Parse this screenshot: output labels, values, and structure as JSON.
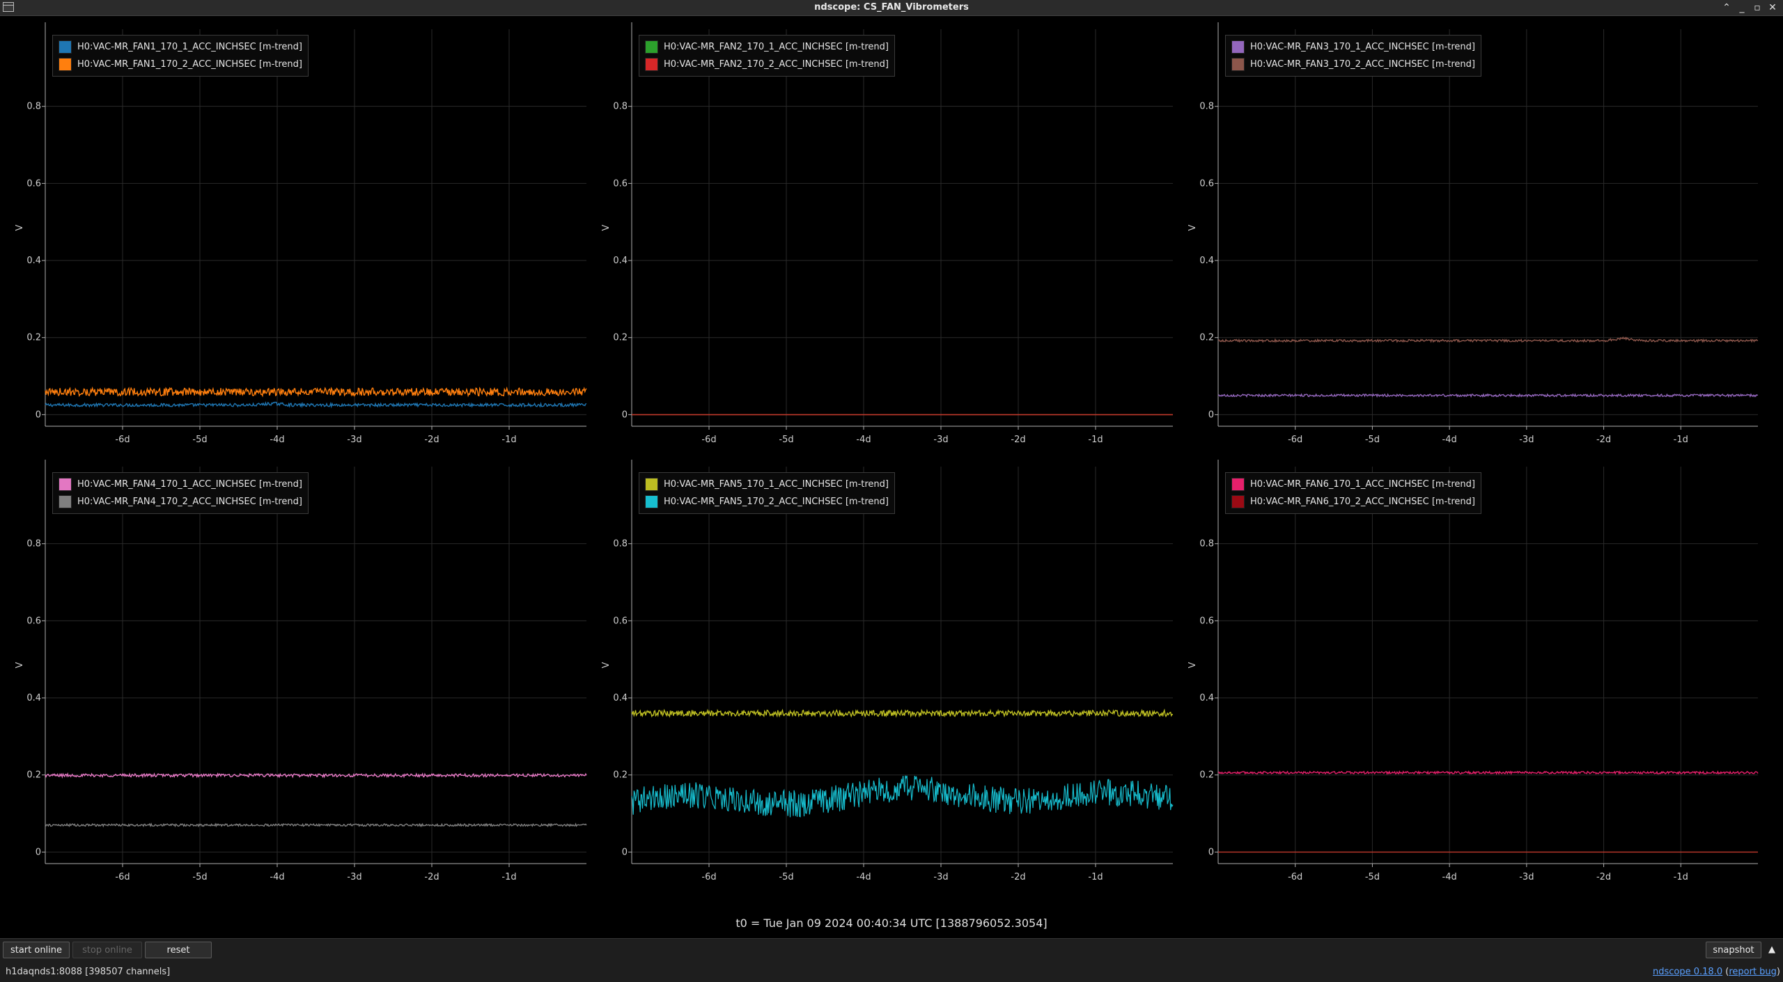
{
  "window": {
    "title": "ndscope: CS_FAN_Vibrometers",
    "controls": [
      "⌃",
      "_",
      "▫",
      "✕"
    ]
  },
  "colors": {
    "background": "#000000",
    "grid": "#2a2a2a",
    "axis": "#b0b0b0",
    "tick_text": "#cfcfcf",
    "zero_line": "#c0392b"
  },
  "t0_label": "t0 = Tue Jan 09 2024 00:40:34 UTC [1388796052.3054]",
  "toolbar": {
    "start_online": "start online",
    "stop_online": "stop online",
    "reset": "reset",
    "snapshot": "snapshot",
    "expand_icon": "triangle-up-icon"
  },
  "status": {
    "server": "h1daqnds1:8088",
    "channels": "[398507 channels]",
    "version": "ndscope 0.18.0",
    "report_bug": "report bug"
  },
  "chart_data": [
    {
      "type": "line",
      "ylabel": "V",
      "ylim": [
        -0.03,
        1.0
      ],
      "yticks": [
        0,
        0.2,
        0.4,
        0.6,
        0.8
      ],
      "xlim": [
        -7,
        0
      ],
      "xticks": [
        "-6d",
        "-5d",
        "-4d",
        "-3d",
        "-2d",
        "-1d"
      ],
      "legend_position": "top-left",
      "series": [
        {
          "name": "H0:VAC-MR_FAN1_170_1_ACC_INCHSEC [m-trend]",
          "color": "#1f77b4",
          "level": 0.025,
          "noise": 0.004,
          "bump": {
            "x": -4.05,
            "dy": 0.004
          }
        },
        {
          "name": "H0:VAC-MR_FAN1_170_2_ACC_INCHSEC [m-trend]",
          "color": "#ff7f0e",
          "level": 0.059,
          "noise": 0.01
        }
      ]
    },
    {
      "type": "line",
      "ylabel": "V",
      "ylim": [
        -0.03,
        1.0
      ],
      "yticks": [
        0,
        0.2,
        0.4,
        0.6,
        0.8
      ],
      "xlim": [
        -7,
        0
      ],
      "xticks": [
        "-6d",
        "-5d",
        "-4d",
        "-3d",
        "-2d",
        "-1d"
      ],
      "legend_position": "top-left",
      "series": [
        {
          "name": "H0:VAC-MR_FAN2_170_1_ACC_INCHSEC [m-trend]",
          "color": "#2ca02c",
          "level": 0.0,
          "noise": 0.0
        },
        {
          "name": "H0:VAC-MR_FAN2_170_2_ACC_INCHSEC [m-trend]",
          "color": "#d62728",
          "level": 0.0,
          "noise": 0.0
        }
      ]
    },
    {
      "type": "line",
      "ylabel": "V",
      "ylim": [
        -0.03,
        1.0
      ],
      "yticks": [
        0,
        0.2,
        0.4,
        0.6,
        0.8
      ],
      "xlim": [
        -7,
        0
      ],
      "xticks": [
        "-6d",
        "-5d",
        "-4d",
        "-3d",
        "-2d",
        "-1d"
      ],
      "legend_position": "top-left",
      "series": [
        {
          "name": "H0:VAC-MR_FAN3_170_1_ACC_INCHSEC [m-trend]",
          "color": "#9467bd",
          "level": 0.05,
          "noise": 0.003
        },
        {
          "name": "H0:VAC-MR_FAN3_170_2_ACC_INCHSEC [m-trend]",
          "color": "#8c564b",
          "level": 0.192,
          "noise": 0.003,
          "bump": {
            "x": -1.75,
            "dy": 0.006
          }
        }
      ]
    },
    {
      "type": "line",
      "ylabel": "V",
      "ylim": [
        -0.03,
        1.0
      ],
      "yticks": [
        0,
        0.2,
        0.4,
        0.6,
        0.8
      ],
      "xlim": [
        -7,
        0
      ],
      "xticks": [
        "-6d",
        "-5d",
        "-4d",
        "-3d",
        "-2d",
        "-1d"
      ],
      "legend_position": "top-left",
      "series": [
        {
          "name": "H0:VAC-MR_FAN4_170_1_ACC_INCHSEC [m-trend]",
          "color": "#e377c2",
          "level": 0.199,
          "noise": 0.004
        },
        {
          "name": "H0:VAC-MR_FAN4_170_2_ACC_INCHSEC [m-trend]",
          "color": "#7f7f7f",
          "level": 0.07,
          "noise": 0.003,
          "speckle": true
        }
      ]
    },
    {
      "type": "line",
      "ylabel": "V",
      "ylim": [
        -0.03,
        1.0
      ],
      "yticks": [
        0,
        0.2,
        0.4,
        0.6,
        0.8
      ],
      "xlim": [
        -7,
        0
      ],
      "xticks": [
        "-6d",
        "-5d",
        "-4d",
        "-3d",
        "-2d",
        "-1d"
      ],
      "legend_position": "top-left",
      "series": [
        {
          "name": "H0:VAC-MR_FAN5_170_1_ACC_INCHSEC [m-trend]",
          "color": "#bcbd22",
          "level": 0.36,
          "noise": 0.008
        },
        {
          "name": "H0:VAC-MR_FAN5_170_2_ACC_INCHSEC [m-trend]",
          "color": "#17becf",
          "level": 0.14,
          "noise": 0.035
        }
      ]
    },
    {
      "type": "line",
      "ylabel": "V",
      "ylim": [
        -0.03,
        1.0
      ],
      "yticks": [
        0,
        0.2,
        0.4,
        0.6,
        0.8
      ],
      "xlim": [
        -7,
        0
      ],
      "xticks": [
        "-6d",
        "-5d",
        "-4d",
        "-3d",
        "-2d",
        "-1d"
      ],
      "legend_position": "top-left",
      "series": [
        {
          "name": "H0:VAC-MR_FAN6_170_1_ACC_INCHSEC [m-trend]",
          "color": "#e7206b",
          "level": 0.206,
          "noise": 0.003
        },
        {
          "name": "H0:VAC-MR_FAN6_170_2_ACC_INCHSEC [m-trend]",
          "color": "#9b0a14",
          "level": 0.0,
          "noise": 0.0
        }
      ]
    }
  ]
}
